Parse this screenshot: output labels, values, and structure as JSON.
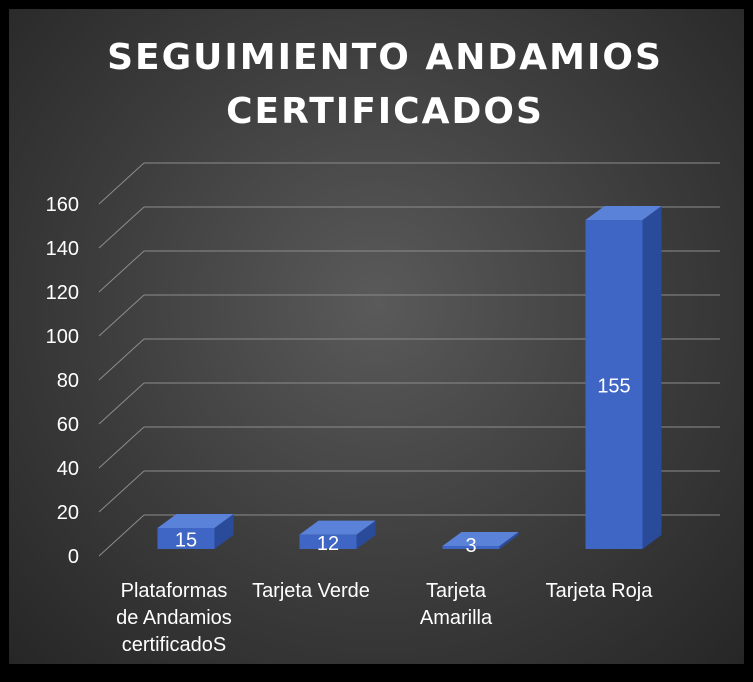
{
  "chart_data": {
    "type": "bar",
    "title_lines": [
      "SEGUIMIENTO ANDAMIOS",
      "CERTIFICADOS"
    ],
    "categories": [
      [
        "Plataformas",
        "de Andamios",
        "certificadoS"
      ],
      [
        "Tarjeta Verde"
      ],
      [
        "Tarjeta",
        "Amarilla"
      ],
      [
        "Tarjeta Roja"
      ]
    ],
    "values": [
      15,
      12,
      3,
      155
    ],
    "ylim": [
      0,
      160
    ],
    "yticks": [
      0,
      20,
      40,
      60,
      80,
      100,
      120,
      140,
      160
    ],
    "grid": true,
    "xlabel": "",
    "ylabel": "",
    "colors": {
      "bar_front": "#3f66c4",
      "bar_side": "#2a4a9a",
      "bar_top": "#5a82d8",
      "grid": "#8c8c8c",
      "text": "#ffffff"
    }
  }
}
